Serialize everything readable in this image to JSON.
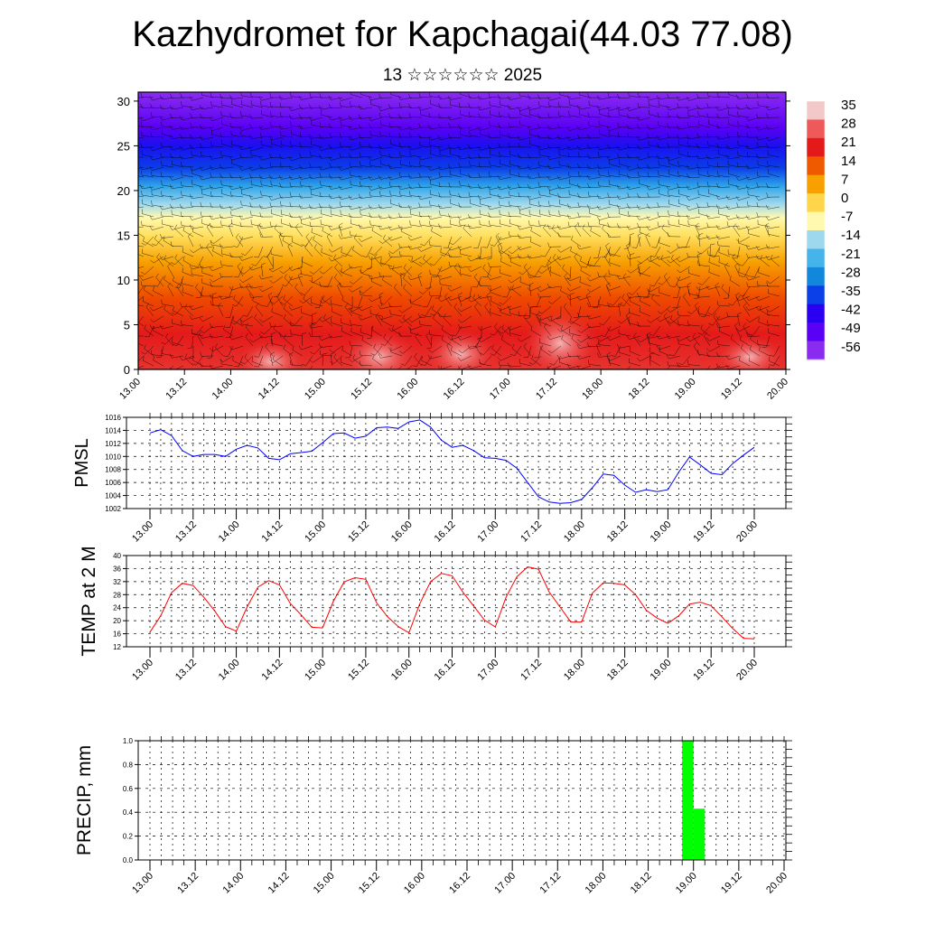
{
  "header": {
    "title": "Kazhydromet for Kapchagai(44.03 77.08)",
    "subtitle": "13 ☆☆☆☆☆☆ 2025"
  },
  "time_labels": [
    "13.00",
    "13.12",
    "14.00",
    "14.12",
    "15.00",
    "15.12",
    "16.00",
    "16.12",
    "17.00",
    "17.12",
    "18.00",
    "18.12",
    "19.00",
    "19.12",
    "20.00"
  ],
  "chart_data": [
    {
      "type": "heatmap",
      "title": "",
      "xlabel": "",
      "ylabel": "",
      "y_ticks": [
        0,
        5,
        10,
        15,
        20,
        25,
        30
      ],
      "ylim": [
        0,
        31
      ],
      "colorbar_labels": [
        "35",
        "28",
        "21",
        "14",
        "7",
        "0",
        "-7",
        "-14",
        "-21",
        "-28",
        "-35",
        "-42",
        "-49",
        "-56"
      ],
      "colorbar_colors": [
        "#f2c8c8",
        "#ee5a5a",
        "#e41a1a",
        "#ef5a00",
        "#f7a000",
        "#ffd54a",
        "#fff9b0",
        "#9ed8ee",
        "#45b4ea",
        "#1288dc",
        "#0b3fe8",
        "#2a00f2",
        "#5a00f4",
        "#8a2cf0"
      ],
      "colormap_stops": [
        {
          "z": 0,
          "t": 33,
          "color": "#e8332e"
        },
        {
          "z": 4,
          "t": 26,
          "color": "#e41a1a"
        },
        {
          "z": 8,
          "t": 16,
          "color": "#ef4a00"
        },
        {
          "z": 12,
          "t": 4,
          "color": "#f7a000"
        },
        {
          "z": 15,
          "t": -6,
          "color": "#ffe060"
        },
        {
          "z": 17,
          "t": -12,
          "color": "#fff9b0"
        },
        {
          "z": 18.5,
          "t": -20,
          "color": "#9ed8ee"
        },
        {
          "z": 20.5,
          "t": -30,
          "color": "#2ea4e8"
        },
        {
          "z": 22.5,
          "t": -40,
          "color": "#0b3fe8"
        },
        {
          "z": 25,
          "t": -54,
          "color": "#1a10f0"
        },
        {
          "z": 27,
          "t": -56,
          "color": "#5a00f4"
        },
        {
          "z": 31,
          "t": -58,
          "color": "#8a2cf0"
        }
      ]
    },
    {
      "type": "line",
      "title": "",
      "xlabel": "",
      "ylabel": "PMSL",
      "ylim": [
        1002,
        1016
      ],
      "y_ticks": [
        1002,
        1004,
        1006,
        1008,
        1010,
        1012,
        1014,
        1016
      ],
      "x_hours": [
        0,
        3,
        6,
        9,
        12,
        15,
        18,
        21,
        24,
        27,
        30,
        33,
        36,
        39,
        42,
        45,
        48,
        51,
        54,
        57,
        60,
        63,
        66,
        69,
        72,
        75,
        78,
        81,
        84,
        87,
        90,
        93,
        96,
        99,
        102,
        105,
        108,
        111,
        114,
        117,
        120,
        123,
        126,
        129,
        132,
        135,
        138,
        141,
        144,
        147,
        150,
        153,
        156,
        159,
        162,
        165,
        168
      ],
      "series": [
        {
          "color": "#0000ff",
          "values": [
            1013.6,
            1014.1,
            1013.2,
            1010.9,
            1010.0,
            1010.3,
            1010.3,
            1010.0,
            1011.1,
            1011.7,
            1011.3,
            1009.7,
            1009.5,
            1010.4,
            1010.6,
            1010.8,
            1012.1,
            1013.5,
            1013.6,
            1012.8,
            1013.1,
            1014.4,
            1014.5,
            1014.3,
            1015.3,
            1015.6,
            1014.5,
            1012.5,
            1011.4,
            1011.7,
            1010.9,
            1009.8,
            1009.7,
            1009.4,
            1008.2,
            1006.0,
            1003.8,
            1003.0,
            1002.8,
            1002.9,
            1003.4,
            1005.2,
            1007.3,
            1007.1,
            1005.6,
            1004.5,
            1004.9,
            1004.6,
            1004.9,
            1007.6,
            1009.9,
            1008.7,
            1007.4,
            1007.2,
            1008.9,
            1010.2,
            1011.4
          ]
        }
      ]
    },
    {
      "type": "line",
      "title": "",
      "xlabel": "",
      "ylabel": "TEMP at 2 M",
      "ylim": [
        12,
        40
      ],
      "y_ticks": [
        12,
        16,
        20,
        24,
        28,
        32,
        36,
        40
      ],
      "x_hours": [
        0,
        3,
        6,
        9,
        12,
        15,
        18,
        21,
        24,
        27,
        30,
        33,
        36,
        39,
        42,
        45,
        48,
        51,
        54,
        57,
        60,
        63,
        66,
        69,
        72,
        75,
        78,
        81,
        84,
        87,
        90,
        93,
        96,
        99,
        102,
        105,
        108,
        111,
        114,
        117,
        120,
        123,
        126,
        129,
        132,
        135,
        138,
        141,
        144,
        147,
        150,
        153,
        156,
        159,
        162,
        165,
        168
      ],
      "series": [
        {
          "color": "#ff0000",
          "values": [
            16.5,
            21.5,
            28.6,
            31.5,
            30.8,
            27.2,
            23.0,
            18.2,
            16.8,
            24.2,
            30.3,
            32.3,
            31.0,
            25.3,
            21.8,
            18.0,
            17.8,
            26.0,
            31.9,
            33.2,
            32.7,
            25.5,
            21.3,
            18.2,
            16.3,
            25.2,
            32.0,
            34.5,
            33.8,
            28.8,
            24.5,
            20.2,
            18.1,
            27.2,
            33.5,
            36.5,
            35.8,
            28.8,
            24.2,
            19.6,
            19.6,
            28.5,
            31.6,
            31.5,
            31.0,
            28.0,
            23.2,
            20.8,
            19.2,
            21.5,
            25.1,
            25.7,
            24.6,
            21.2,
            17.6,
            14.6,
            14.4
          ]
        }
      ]
    },
    {
      "type": "bar",
      "title": "",
      "xlabel": "",
      "ylabel": "PRECIP, mm",
      "ylim": [
        0,
        1.0
      ],
      "y_ticks": [
        "0.0",
        "0.2",
        "0.4",
        "0.6",
        "0.8",
        "1.0"
      ],
      "bar_color": "#00ff00",
      "bars": [
        {
          "start_hour": 141,
          "end_hour": 144,
          "value": 1.0
        },
        {
          "start_hour": 144,
          "end_hour": 147,
          "value": 0.43
        }
      ]
    }
  ]
}
